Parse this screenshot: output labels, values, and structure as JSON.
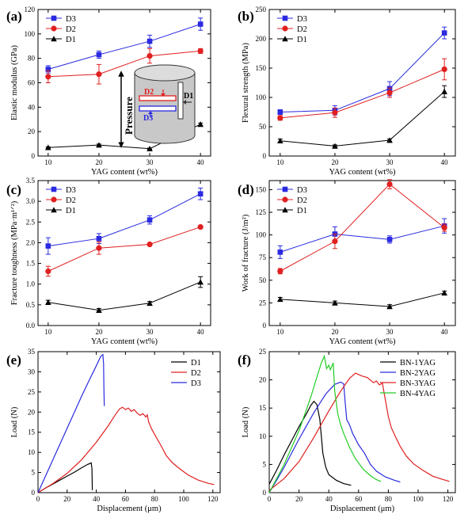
{
  "chart_data": [
    {
      "panel": "(a)",
      "type": "line",
      "x": [
        10,
        20,
        30,
        40
      ],
      "xlabel": "YAG content (wt%)",
      "ylabel": "Elastic modulus (GPa)",
      "xlim": [
        8,
        42
      ],
      "ylim": [
        0,
        120
      ],
      "xticks": [
        10,
        20,
        30,
        40
      ],
      "yticks": [
        0,
        20,
        40,
        60,
        80,
        100,
        120
      ],
      "legend": "top-left",
      "series": [
        {
          "name": "D3",
          "color": "#2a2ae0",
          "marker": "square",
          "values": [
            71,
            83,
            94,
            108
          ],
          "errors": [
            3,
            3,
            5,
            5
          ]
        },
        {
          "name": "D2",
          "color": "#e02020",
          "marker": "circle",
          "values": [
            65,
            67,
            82,
            86
          ],
          "errors": [
            5,
            8,
            6,
            2
          ]
        },
        {
          "name": "D1",
          "color": "#000000",
          "marker": "triangle",
          "values": [
            7,
            9,
            6,
            26
          ],
          "errors": [
            0.5,
            0.8,
            0.5,
            1
          ]
        }
      ],
      "inset": {
        "pressure": "Pressure",
        "d1": "D1",
        "d2": "D2",
        "d3": "D3"
      }
    },
    {
      "panel": "(b)",
      "type": "line",
      "x": [
        10,
        20,
        30,
        40
      ],
      "xlabel": "YAG content (wt%)",
      "ylabel": "Flexural strength (MPa)",
      "xlim": [
        8,
        42
      ],
      "ylim": [
        0,
        250
      ],
      "xticks": [
        10,
        20,
        30,
        40
      ],
      "yticks": [
        0,
        50,
        100,
        150,
        200,
        250
      ],
      "legend": "top-left",
      "series": [
        {
          "name": "D3",
          "color": "#2a2ae0",
          "marker": "square",
          "values": [
            75,
            78,
            115,
            210
          ],
          "errors": [
            4,
            8,
            12,
            10
          ]
        },
        {
          "name": "D2",
          "color": "#e02020",
          "marker": "circle",
          "values": [
            65,
            74,
            108,
            148
          ],
          "errors": [
            4,
            8,
            8,
            18
          ]
        },
        {
          "name": "D1",
          "color": "#000000",
          "marker": "triangle",
          "values": [
            26,
            17,
            27,
            110
          ],
          "errors": [
            3,
            2,
            2,
            10
          ]
        }
      ]
    },
    {
      "panel": "(c)",
      "type": "line",
      "x": [
        10,
        20,
        30,
        40
      ],
      "xlabel": "YAG content (wt%)",
      "ylabel": "Fracture toughness (MPa·m¹ᐟ²)",
      "xlim": [
        8,
        42
      ],
      "ylim": [
        0,
        3.5
      ],
      "xticks": [
        10,
        20,
        30,
        40
      ],
      "yticks": [
        0,
        0.5,
        1.0,
        1.5,
        2.0,
        2.5,
        3.0,
        3.5
      ],
      "ytick_labels": [
        "0.0",
        "0.5",
        "1.0",
        "1.5",
        "2.0",
        "2.5",
        "3.0",
        "3.5"
      ],
      "legend": "top-left",
      "series": [
        {
          "name": "D3",
          "color": "#2a2ae0",
          "marker": "square",
          "values": [
            1.92,
            2.1,
            2.55,
            3.18
          ],
          "errors": [
            0.2,
            0.12,
            0.1,
            0.14
          ]
        },
        {
          "name": "D2",
          "color": "#e02020",
          "marker": "circle",
          "values": [
            1.31,
            1.87,
            1.96,
            2.38
          ],
          "errors": [
            0.12,
            0.15,
            0.03,
            0.02
          ]
        },
        {
          "name": "D1",
          "color": "#000000",
          "marker": "triangle",
          "values": [
            0.56,
            0.37,
            0.54,
            1.05
          ],
          "errors": [
            0.05,
            0.04,
            0.04,
            0.13
          ]
        }
      ]
    },
    {
      "panel": "(d)",
      "type": "line",
      "x": [
        10,
        20,
        30,
        40
      ],
      "xlabel": "YAG content (wt%)",
      "ylabel": "Work of fracture (J/m²)",
      "xlim": [
        8,
        42
      ],
      "ylim": [
        0,
        160
      ],
      "xticks": [
        10,
        20,
        30,
        40
      ],
      "yticks": [
        0,
        25,
        50,
        75,
        100,
        125,
        150
      ],
      "legend": "top-left",
      "series": [
        {
          "name": "D3",
          "color": "#2a2ae0",
          "marker": "square",
          "values": [
            81,
            101,
            95,
            110
          ],
          "errors": [
            7,
            8,
            4,
            8
          ]
        },
        {
          "name": "D2",
          "color": "#e02020",
          "marker": "circle",
          "values": [
            60,
            93,
            156,
            108
          ],
          "errors": [
            3,
            8,
            5,
            4
          ]
        },
        {
          "name": "D1",
          "color": "#000000",
          "marker": "triangle",
          "values": [
            29,
            25,
            21,
            36
          ],
          "errors": [
            2,
            2,
            2,
            2
          ]
        }
      ]
    },
    {
      "panel": "(e)",
      "type": "line",
      "xlabel": "Displacement (μm)",
      "ylabel": "Load (N)",
      "xlim": [
        0,
        125
      ],
      "ylim": [
        0,
        35
      ],
      "xticks": [
        0,
        20,
        40,
        60,
        80,
        100,
        120
      ],
      "yticks": [
        0,
        5,
        10,
        15,
        20,
        25,
        30,
        35
      ],
      "legend": "top-right",
      "series": [
        {
          "name": "D1",
          "color": "#000000",
          "points": [
            [
              0,
              0
            ],
            [
              5,
              1.1
            ],
            [
              10,
              2.1
            ],
            [
              15,
              3.1
            ],
            [
              20,
              4.1
            ],
            [
              25,
              5.1
            ],
            [
              30,
              6.2
            ],
            [
              34,
              7.0
            ],
            [
              36.5,
              7.4
            ],
            [
              37,
              6
            ],
            [
              37.2,
              3
            ],
            [
              37.3,
              0.6
            ]
          ]
        },
        {
          "name": "D2",
          "color": "#e02020",
          "points": [
            [
              0,
              0
            ],
            [
              10,
              2.2
            ],
            [
              20,
              4.8
            ],
            [
              30,
              8.2
            ],
            [
              40,
              12.5
            ],
            [
              48,
              16.5
            ],
            [
              53,
              19.3
            ],
            [
              56,
              20.8
            ],
            [
              58,
              21.2
            ],
            [
              60,
              20.6
            ],
            [
              62,
              21
            ],
            [
              64,
              20.2
            ],
            [
              66,
              20.6
            ],
            [
              68,
              19.8
            ],
            [
              70,
              19.2
            ],
            [
              72,
              19.6
            ],
            [
              74,
              18.8
            ],
            [
              75,
              19.3
            ],
            [
              76,
              17.5
            ],
            [
              78,
              15.8
            ],
            [
              80,
              14.5
            ],
            [
              82,
              13.2
            ],
            [
              85,
              11.3
            ],
            [
              88,
              9.2
            ],
            [
              92,
              7.5
            ],
            [
              97,
              6
            ],
            [
              103,
              4.4
            ],
            [
              110,
              3.1
            ],
            [
              117,
              2.3
            ],
            [
              121,
              2
            ]
          ]
        },
        {
          "name": "D3",
          "color": "#2a2ae0",
          "points": [
            [
              0,
              0
            ],
            [
              5,
              4
            ],
            [
              10,
              8
            ],
            [
              15,
              12
            ],
            [
              20,
              16
            ],
            [
              25,
              20
            ],
            [
              30,
              24
            ],
            [
              35,
              27.8
            ],
            [
              40,
              31.5
            ],
            [
              43,
              33.8
            ],
            [
              44.5,
              34.3
            ],
            [
              45,
              32
            ],
            [
              45.2,
              26
            ],
            [
              45.5,
              21.5
            ]
          ]
        }
      ]
    },
    {
      "panel": "(f)",
      "type": "line",
      "xlabel": "Displacement (μm)",
      "ylabel": "Load (N)",
      "xlim": [
        0,
        125
      ],
      "ylim": [
        0,
        25
      ],
      "xticks": [
        0,
        20,
        40,
        60,
        80,
        100,
        120
      ],
      "yticks": [
        0,
        5,
        10,
        15,
        20,
        25
      ],
      "legend": "top-right",
      "series": [
        {
          "name": "BN-1YAG",
          "color": "#000000",
          "points": [
            [
              0,
              1.5
            ],
            [
              5,
              4
            ],
            [
              10,
              6.7
            ],
            [
              15,
              9.2
            ],
            [
              20,
              11.7
            ],
            [
              25,
              14
            ],
            [
              28,
              15.5
            ],
            [
              30,
              16.2
            ],
            [
              32,
              15.6
            ],
            [
              34,
              13
            ],
            [
              35,
              10
            ],
            [
              36,
              7
            ],
            [
              38,
              4.5
            ],
            [
              40,
              3.2
            ],
            [
              45,
              2.2
            ],
            [
              50,
              1.6
            ],
            [
              55,
              1.3
            ]
          ]
        },
        {
          "name": "BN-2YAG",
          "color": "#2a2ae0",
          "points": [
            [
              0,
              0
            ],
            [
              5,
              2.2
            ],
            [
              10,
              4.5
            ],
            [
              20,
              9.5
            ],
            [
              30,
              14.2
            ],
            [
              38,
              17.5
            ],
            [
              44,
              19.2
            ],
            [
              48,
              19.6
            ],
            [
              50,
              19.3
            ],
            [
              51,
              16
            ],
            [
              52,
              13
            ],
            [
              54,
              12
            ],
            [
              56,
              10.5
            ],
            [
              60,
              8.5
            ],
            [
              64,
              7
            ],
            [
              68,
              5
            ],
            [
              72,
              3.8
            ],
            [
              78,
              2.8
            ],
            [
              84,
              2.2
            ],
            [
              88,
              1.9
            ]
          ]
        },
        {
          "name": "BN-3YAG",
          "color": "#e02020",
          "points": [
            [
              0,
              0.4
            ],
            [
              10,
              2.5
            ],
            [
              20,
              5.5
            ],
            [
              30,
              9.8
            ],
            [
              40,
              14.5
            ],
            [
              48,
              18
            ],
            [
              54,
              20.3
            ],
            [
              58,
              21.2
            ],
            [
              62,
              20.7
            ],
            [
              66,
              20.4
            ],
            [
              70,
              19.5
            ],
            [
              72,
              19.8
            ],
            [
              74,
              19.1
            ],
            [
              76,
              19.4
            ],
            [
              78,
              16.5
            ],
            [
              80,
              13.5
            ],
            [
              82,
              11.5
            ],
            [
              85,
              9.8
            ],
            [
              88,
              8.2
            ],
            [
              92,
              6.5
            ],
            [
              97,
              5.1
            ],
            [
              103,
              4
            ],
            [
              110,
              2.9
            ],
            [
              117,
              2.3
            ],
            [
              121,
              2
            ]
          ]
        },
        {
          "name": "BN-4YAG",
          "color": "#22cc22",
          "points": [
            [
              0,
              0
            ],
            [
              5,
              2.5
            ],
            [
              10,
              5
            ],
            [
              20,
              11
            ],
            [
              28,
              17
            ],
            [
              32,
              20.5
            ],
            [
              35,
              23
            ],
            [
              37,
              24.2
            ],
            [
              38.5,
              22
            ],
            [
              40,
              22.6
            ],
            [
              41,
              21.8
            ],
            [
              43,
              23
            ],
            [
              44,
              18
            ],
            [
              46,
              14
            ],
            [
              48,
              12
            ],
            [
              50,
              10.5
            ],
            [
              54,
              8
            ],
            [
              58,
              6
            ],
            [
              63,
              4.2
            ],
            [
              68,
              3
            ],
            [
              72,
              2.3
            ],
            [
              75,
              2
            ]
          ]
        }
      ]
    }
  ]
}
